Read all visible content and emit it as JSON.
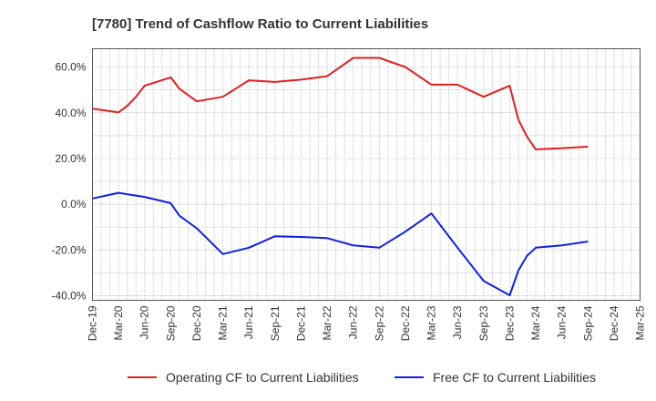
{
  "chart_data": {
    "type": "line",
    "title": "[7780]  Trend of Cashflow Ratio to Current Liabilities",
    "xlabel": "",
    "ylabel": "",
    "ylim": [
      -42,
      68
    ],
    "y_ticks": [
      60,
      40,
      20,
      0,
      -20,
      -40
    ],
    "y_tick_labels": [
      "60.0%",
      "40.0%",
      "20.0%",
      "0.0%",
      "-20.0%",
      "-40.0%"
    ],
    "x_tick_labels": [
      "Dec-19",
      "Mar-20",
      "Jun-20",
      "Sep-20",
      "Dec-20",
      "Mar-21",
      "Jun-21",
      "Sep-21",
      "Dec-21",
      "Mar-22",
      "Jun-22",
      "Sep-22",
      "Dec-22",
      "Mar-23",
      "Jun-23",
      "Sep-23",
      "Dec-23",
      "Mar-24",
      "Jun-24",
      "Sep-24",
      "Dec-24",
      "Mar-25"
    ],
    "grid": true,
    "legend_position": "bottom",
    "series": [
      {
        "name": "Operating CF to Current Liabilities",
        "color": "#e02020",
        "points": [
          [
            "Dec-19",
            41.8
          ],
          [
            "Mar-20",
            40.2
          ],
          [
            "Apr-20",
            43.0
          ],
          [
            "May-20",
            47.0
          ],
          [
            "Jun-20",
            51.8
          ],
          [
            "Sep-20",
            55.5
          ],
          [
            "Oct-20",
            50.5
          ],
          [
            "Dec-20",
            45.0
          ],
          [
            "Mar-21",
            47.0
          ],
          [
            "Jun-21",
            54.2
          ],
          [
            "Sep-21",
            53.5
          ],
          [
            "Dec-21",
            54.5
          ],
          [
            "Mar-22",
            56.0
          ],
          [
            "Jun-22",
            64.0
          ],
          [
            "Sep-22",
            64.0
          ],
          [
            "Dec-22",
            60.0
          ],
          [
            "Mar-23",
            52.3
          ],
          [
            "Jun-23",
            52.3
          ],
          [
            "Sep-23",
            47.0
          ],
          [
            "Dec-23",
            51.8
          ],
          [
            "Jan-24",
            37.0
          ],
          [
            "Feb-24",
            29.5
          ],
          [
            "Mar-24",
            24.0
          ],
          [
            "Jun-24",
            24.5
          ],
          [
            "Sep-24",
            25.2
          ]
        ]
      },
      {
        "name": "Free CF to Current Liabilities",
        "color": "#1020e0",
        "points": [
          [
            "Dec-19",
            2.5
          ],
          [
            "Mar-20",
            5.0
          ],
          [
            "Jun-20",
            3.2
          ],
          [
            "Sep-20",
            0.5
          ],
          [
            "Oct-20",
            -5.0
          ],
          [
            "Dec-20",
            -10.5
          ],
          [
            "Mar-21",
            -21.8
          ],
          [
            "Jun-21",
            -19.0
          ],
          [
            "Sep-21",
            -14.0
          ],
          [
            "Dec-21",
            -14.3
          ],
          [
            "Mar-22",
            -14.8
          ],
          [
            "Jun-22",
            -18.0
          ],
          [
            "Sep-22",
            -19.0
          ],
          [
            "Dec-22",
            -12.0
          ],
          [
            "Mar-23",
            -4.0
          ],
          [
            "Jun-23",
            -19.0
          ],
          [
            "Sep-23",
            -33.5
          ],
          [
            "Dec-23",
            -39.8
          ],
          [
            "Jan-24",
            -29.0
          ],
          [
            "Feb-24",
            -22.5
          ],
          [
            "Mar-24",
            -19.0
          ],
          [
            "Jun-24",
            -18.0
          ],
          [
            "Sep-24",
            -16.3
          ]
        ]
      }
    ]
  }
}
